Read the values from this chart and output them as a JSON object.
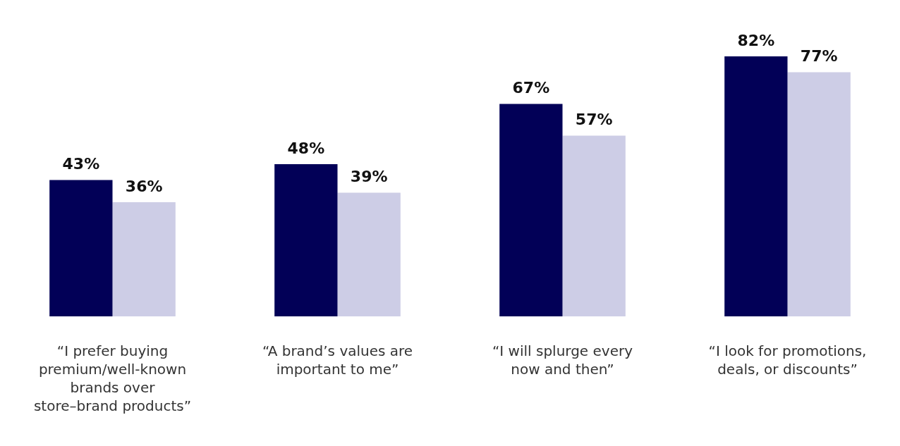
{
  "chart_data": {
    "type": "bar",
    "categories": [
      "“I prefer buying premium/well-known brands over store–brand products”",
      "“A brand’s values are important to me”",
      "“I will splurge every now and then”",
      "“I look for promotions, deals, or discounts”"
    ],
    "series": [
      {
        "color": "#020057",
        "values": [
          43,
          48,
          67,
          82
        ],
        "value_labels": [
          "43%",
          "48%",
          "67%",
          "82%"
        ]
      },
      {
        "color": "#cdcde6",
        "values": [
          36,
          39,
          57,
          77
        ],
        "value_labels": [
          "36%",
          "39%",
          "57%",
          "77%"
        ]
      }
    ],
    "grid": false,
    "legend": false,
    "tick_labels": "x"
  }
}
